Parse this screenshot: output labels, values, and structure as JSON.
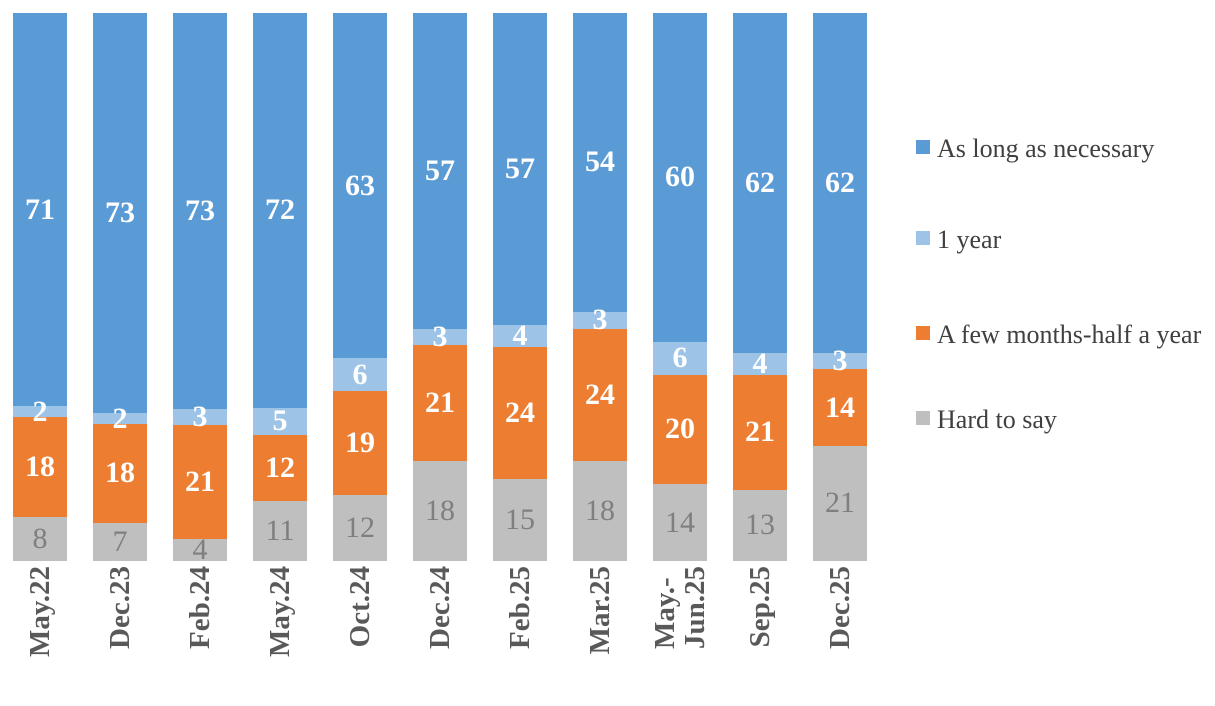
{
  "chart_data": {
    "type": "bar",
    "subtype": "stacked-column",
    "title": "",
    "xlabel": "",
    "ylabel": "",
    "grid": false,
    "legend_position": "right",
    "data_labels": true,
    "categories": [
      "May.22",
      "Dec.23",
      "Feb.24",
      "May.24",
      "Oct.24",
      "Dec.24",
      "Feb.25",
      "Mar.25",
      "May.-\nJun.25",
      "Sep.25",
      "Dec.25"
    ],
    "series": [
      {
        "name": "As long as necessary",
        "color": "#5B9BD5",
        "label_color": "#FFFFFF",
        "values": [
          71,
          73,
          73,
          72,
          63,
          57,
          57,
          54,
          60,
          62,
          62
        ]
      },
      {
        "name": "1 year",
        "color": "#9DC3E6",
        "label_color": "#FFFFFF",
        "values": [
          2,
          2,
          3,
          5,
          6,
          3,
          4,
          3,
          6,
          4,
          3
        ]
      },
      {
        "name": "A few months-half a year",
        "color": "#ED7D31",
        "label_color": "#FFFFFF",
        "values": [
          18,
          18,
          21,
          12,
          19,
          21,
          24,
          24,
          20,
          21,
          14
        ]
      },
      {
        "name": "Hard to say",
        "color": "#BFBFBF",
        "label_color": "#7F7F7F",
        "values": [
          8,
          7,
          4,
          11,
          12,
          18,
          15,
          18,
          14,
          13,
          21
        ]
      }
    ],
    "stack_order_bottom_to_top": [
      "Hard to say",
      "A few months-half a year",
      "1 year",
      "As long as necessary"
    ]
  },
  "legend": {
    "items": [
      {
        "label": "As long as necessary",
        "color": "#5B9BD5"
      },
      {
        "label": "1 year",
        "color": "#9DC3E6"
      },
      {
        "label": "A few months-half a year",
        "color": "#ED7D31"
      },
      {
        "label": "Hard to say",
        "color": "#BFBFBF"
      }
    ]
  },
  "colors": {
    "background": "#FFFFFF",
    "axis_label_text": "#595959",
    "legend_text": "#404040",
    "white_data_label": "#FFFFFF",
    "gray_data_label": "#7F7F7F"
  }
}
